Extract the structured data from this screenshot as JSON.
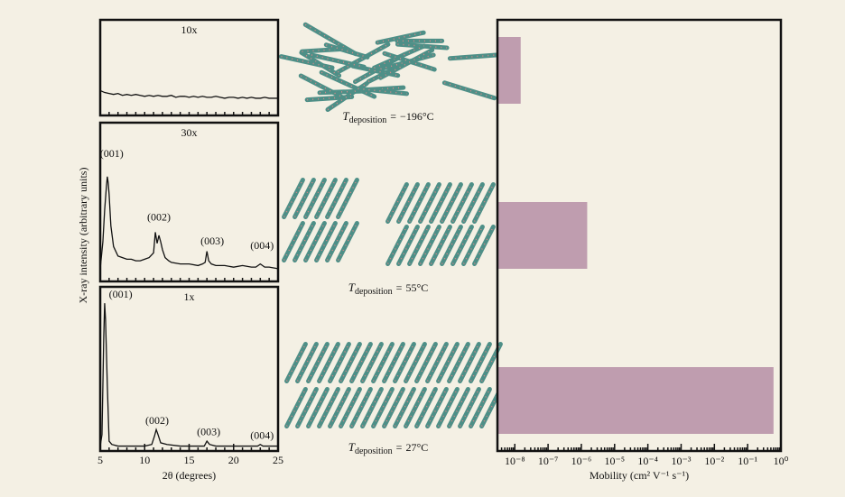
{
  "chart_data": [
    {
      "type": "line",
      "label": "10x",
      "xlim": [
        5,
        25
      ],
      "ylim": [
        0,
        100
      ],
      "color": "#111111",
      "x": [
        5,
        5.5,
        6,
        6.5,
        7,
        7.5,
        8,
        8.5,
        9,
        9.5,
        10,
        10.5,
        11,
        11.5,
        12,
        12.5,
        13,
        13.5,
        14,
        14.5,
        15,
        15.5,
        16,
        16.5,
        17,
        17.5,
        18,
        18.5,
        19,
        19.5,
        20,
        20.5,
        21,
        21.5,
        22,
        22.5,
        23,
        23.5,
        24,
        24.5,
        25
      ],
      "values": [
        26,
        24,
        23,
        22,
        23,
        21,
        22,
        21,
        22,
        21,
        20,
        21,
        20,
        21,
        20,
        20,
        21,
        19,
        20,
        20,
        19,
        20,
        19,
        20,
        19,
        19,
        20,
        19,
        18,
        19,
        19,
        18,
        19,
        18,
        19,
        18,
        18,
        19,
        18,
        18,
        18
      ]
    },
    {
      "type": "line",
      "label": "30x",
      "ylabel": "X-ray intensity (arbitrary units)",
      "xlim": [
        5,
        25
      ],
      "ylim": [
        0,
        100
      ],
      "color": "#111111",
      "x": [
        5,
        5.3,
        5.5,
        5.7,
        5.8,
        5.9,
        6,
        6.2,
        6.5,
        7,
        7.5,
        8,
        8.5,
        9,
        9.5,
        10,
        10.5,
        11,
        11.2,
        11.4,
        11.6,
        11.8,
        12,
        12.3,
        12.7,
        13,
        14,
        15,
        16,
        16.5,
        16.8,
        17,
        17.2,
        17.5,
        18,
        19,
        20,
        21,
        22,
        22.5,
        23,
        23.5,
        24,
        25
      ],
      "values": [
        8,
        25,
        45,
        60,
        66,
        62,
        55,
        35,
        22,
        16,
        15,
        14,
        14,
        13,
        13,
        14,
        15,
        18,
        31,
        24,
        29,
        25,
        20,
        15,
        13,
        12,
        11,
        11,
        10,
        11,
        12,
        19,
        13,
        11,
        10,
        10,
        9,
        10,
        9,
        9,
        11,
        9,
        9,
        8
      ],
      "annotations": [
        {
          "text": "(001)",
          "x": 6.3,
          "y": 80
        },
        {
          "text": "(002)",
          "x": 11.6,
          "y": 40
        },
        {
          "text": "(003)",
          "x": 17.6,
          "y": 25
        },
        {
          "text": "(004)",
          "x": 23.2,
          "y": 22
        }
      ]
    },
    {
      "type": "line",
      "label": "1x",
      "xlabel": "2θ  (degrees)",
      "xlim": [
        5,
        25
      ],
      "ylim": [
        0,
        100
      ],
      "color": "#111111",
      "xticks": [
        5,
        10,
        15,
        20,
        25
      ],
      "x": [
        5,
        5.2,
        5.4,
        5.5,
        5.6,
        5.8,
        6,
        6.3,
        7,
        8,
        9,
        10,
        10.8,
        11.1,
        11.3,
        11.5,
        11.8,
        12.5,
        14,
        16,
        16.7,
        17,
        17.3,
        18,
        20,
        22,
        22.7,
        23,
        23.3,
        24,
        25
      ],
      "values": [
        3,
        10,
        70,
        90,
        80,
        40,
        6,
        4,
        3,
        3,
        3,
        3,
        4,
        9,
        13,
        10,
        5,
        4,
        3,
        3,
        3,
        6,
        4,
        3,
        3,
        3,
        3,
        4,
        3,
        3,
        3
      ],
      "annotations": [
        {
          "text": "(001)",
          "x": 7.3,
          "y": 95
        },
        {
          "text": "(002)",
          "x": 11.4,
          "y": 18
        },
        {
          "text": "(003)",
          "x": 17.2,
          "y": 11
        },
        {
          "text": "(004)",
          "x": 23.2,
          "y": 9
        }
      ]
    },
    {
      "type": "bar",
      "orientation": "horizontal",
      "xscale": "log",
      "color": "#bf9daf",
      "xlabel": "Mobility (cm² V⁻¹ s⁻¹)",
      "category_symbol": "T",
      "category_subscript": "deposition",
      "relation": "=",
      "categories": [
        "−196°C",
        "55°C",
        "27°C"
      ],
      "values": [
        1.5e-08,
        1.5e-06,
        0.6
      ],
      "xlim": [
        3e-09,
        1
      ],
      "xticks": [
        {
          "value": 1e-08,
          "label": "10⁻⁸"
        },
        {
          "value": 1e-07,
          "label": "10⁻⁷"
        },
        {
          "value": 1e-06,
          "label": "10⁻⁶"
        },
        {
          "value": 1e-05,
          "label": "10⁻⁵"
        },
        {
          "value": 0.0001,
          "label": "10⁻⁴"
        },
        {
          "value": 0.001,
          "label": "10⁻³"
        },
        {
          "value": 0.01,
          "label": "10⁻²"
        },
        {
          "value": 0.1,
          "label": "10⁻¹"
        },
        {
          "value": 1,
          "label": "10⁰"
        }
      ]
    }
  ]
}
